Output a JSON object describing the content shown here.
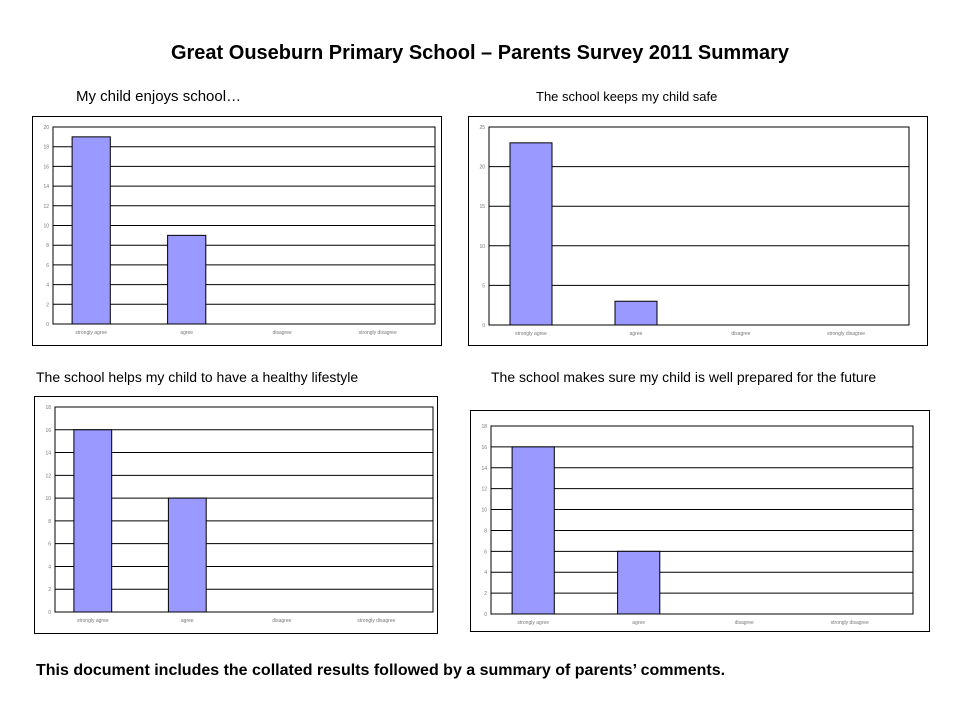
{
  "page": {
    "title": "Great Ouseburn Primary School – Parents Survey 2011 Summary",
    "footer": "This document includes the collated results followed by a summary of parents’ comments."
  },
  "colors": {
    "bar_fill": "#9999ff",
    "bar_stroke": "#000000",
    "grid": "#000000",
    "tick_text": "#777777"
  },
  "chart_data": [
    {
      "type": "bar",
      "title": "My child enjoys school…",
      "categories": [
        "strongly agree",
        "agree",
        "disagree",
        "strongly disagree"
      ],
      "values": [
        19,
        9,
        0,
        0
      ],
      "ylim": [
        0,
        20
      ],
      "yticks": [
        "0",
        "2",
        "4",
        "6",
        "8",
        "10",
        "12",
        "14",
        "16",
        "18",
        "20"
      ],
      "xlabel": "",
      "ylabel": "",
      "grid": true
    },
    {
      "type": "bar",
      "title": "The school keeps my child safe",
      "categories": [
        "strongly agree",
        "agree",
        "disagree",
        "strongly disagree"
      ],
      "values": [
        23,
        3,
        0,
        0
      ],
      "ylim": [
        0,
        25
      ],
      "yticks": [
        "0",
        "5",
        "10",
        "15",
        "20",
        "25"
      ],
      "xlabel": "",
      "ylabel": "",
      "grid": true
    },
    {
      "type": "bar",
      "title": "The school helps my child to have a healthy lifestyle",
      "categories": [
        "strongly agree",
        "agree",
        "disagree",
        "strongly disagree"
      ],
      "values": [
        16,
        10,
        0,
        0
      ],
      "ylim": [
        0,
        18
      ],
      "yticks": [
        "0",
        "2",
        "4",
        "6",
        "8",
        "10",
        "12",
        "14",
        "16",
        "18"
      ],
      "xlabel": "",
      "ylabel": "",
      "grid": true
    },
    {
      "type": "bar",
      "title": "The school makes sure my child is well prepared for the future",
      "categories": [
        "strongly agree",
        "agree",
        "disagree",
        "strongly disagree"
      ],
      "values": [
        16,
        6,
        0,
        0
      ],
      "ylim": [
        0,
        18
      ],
      "yticks": [
        "0",
        "2",
        "4",
        "6",
        "8",
        "10",
        "12",
        "14",
        "16",
        "18"
      ],
      "xlabel": "",
      "ylabel": "",
      "grid": true
    }
  ]
}
